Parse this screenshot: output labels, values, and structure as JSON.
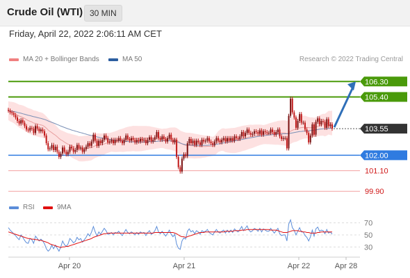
{
  "header": {
    "title": "Crude Oil (WTI)",
    "timeframe": "30 MIN"
  },
  "timestamp": "Friday, April 22, 2022 2:06:11 AM CET",
  "legend": {
    "ma20": {
      "label": "MA 20 + Bollinger Bands",
      "color": "#f08080"
    },
    "ma50": {
      "label": "MA 50",
      "color": "#2c5ea0"
    },
    "rsi": {
      "label": "RSI",
      "color": "#5b8dd9"
    },
    "nine_ma": {
      "label": "9MA",
      "color": "#e01010"
    }
  },
  "credit": "Research © 2022 Trading Central",
  "chart_data": [
    {
      "type": "candlestick",
      "x_labels": [
        "Apr 20",
        "Apr 21",
        "Apr 22",
        "Apr 28"
      ],
      "ylim": [
        99.3,
        107.0
      ],
      "levels": [
        {
          "label": "106.30",
          "value": 106.3,
          "kind": "resistance",
          "color": "#4a9a0a"
        },
        {
          "label": "105.40",
          "value": 105.4,
          "kind": "resistance",
          "color": "#4a9a0a"
        },
        {
          "label": "103.55",
          "value": 103.55,
          "kind": "last",
          "color": "#333333"
        },
        {
          "label": "102.00",
          "value": 102.0,
          "kind": "pivot",
          "color": "#2f7be0"
        },
        {
          "label": "101.10",
          "value": 101.1,
          "kind": "support",
          "color": "#f2a0a0"
        },
        {
          "label": "99.90",
          "value": 99.9,
          "kind": "support",
          "color": "#f2a0a0"
        }
      ],
      "close": [
        104.6,
        104.5,
        104.45,
        104.35,
        104.2,
        104.0,
        103.85,
        104.05,
        103.9,
        103.7,
        103.5,
        103.45,
        103.6,
        103.55,
        103.3,
        103.7,
        103.55,
        103.4,
        103.5,
        103.4,
        103.15,
        102.7,
        102.35,
        102.4,
        102.6,
        102.3,
        102.5,
        102.2,
        101.9,
        102.1,
        102.45,
        102.2,
        102.05,
        102.2,
        102.5,
        102.4,
        102.2,
        102.3,
        102.6,
        102.4,
        102.45,
        102.2,
        102.35,
        102.5,
        102.7,
        102.55,
        102.8,
        103.2,
        102.85,
        102.55,
        102.85,
        102.7,
        102.9,
        103.15,
        103.0,
        102.75,
        102.8,
        102.9,
        102.7,
        102.9,
        102.85,
        103.0,
        102.85,
        102.7,
        102.9,
        103.15,
        102.95,
        102.85,
        103.0,
        102.9,
        102.75,
        102.9,
        102.8,
        102.95,
        102.85,
        102.9,
        102.7,
        102.9,
        103.05,
        102.8,
        102.9,
        103.05,
        103.35,
        103.0,
        102.9,
        103.1,
        102.95,
        102.8,
        103.0,
        103.2,
        102.9,
        102.75,
        102.9,
        101.9,
        101.3,
        101.05,
        101.8,
        102.05,
        101.95,
        102.7,
        102.95,
        102.7,
        102.85,
        102.6,
        102.85,
        102.75,
        102.6,
        102.9,
        102.8,
        102.85,
        103.0,
        102.8,
        102.7,
        102.6,
        102.8,
        103.0,
        102.85,
        102.75,
        102.9,
        103.0,
        102.8,
        103.0,
        102.85,
        103.0,
        102.85,
        103.1,
        103.0,
        102.95,
        103.1,
        103.35,
        103.1,
        103.3,
        103.5,
        103.3,
        103.2,
        103.25,
        103.4,
        103.35,
        103.25,
        103.45,
        103.2,
        103.4,
        103.35,
        103.3,
        103.3,
        103.5,
        103.35,
        103.2,
        103.35,
        103.5,
        103.1,
        102.95,
        103.0,
        103.0,
        102.4,
        104.3,
        105.3,
        104.5,
        104.2,
        103.6,
        104.0,
        104.4,
        103.9,
        103.9,
        103.5,
        103.3,
        102.75,
        103.15,
        103.8,
        103.2,
        103.95,
        104.15,
        103.8,
        104.0,
        103.95,
        103.6,
        104.1,
        103.7,
        103.8,
        103.55
      ],
      "ma20": [
        104.6,
        104.55,
        104.52,
        104.48,
        104.42,
        104.35,
        104.28,
        104.25,
        104.2,
        104.15,
        104.08,
        104.02,
        103.98,
        103.94,
        103.88,
        103.86,
        103.83,
        103.79,
        103.77,
        103.74,
        103.67,
        103.58,
        103.47,
        103.39,
        103.32,
        103.24,
        103.17,
        103.08,
        102.98,
        102.9,
        102.84,
        102.77,
        102.7,
        102.64,
        102.6,
        102.55,
        102.51,
        102.47,
        102.43,
        102.38,
        102.38,
        102.38,
        102.39,
        102.4,
        102.41,
        102.42,
        102.44,
        102.5,
        102.55,
        102.58,
        102.6,
        102.6,
        102.63,
        102.66,
        102.7,
        102.72,
        102.74,
        102.77,
        102.78,
        102.79,
        102.81,
        102.84,
        102.86,
        102.87,
        102.89,
        102.92,
        102.94,
        102.95,
        102.96,
        102.98,
        102.97,
        102.97,
        102.97,
        102.97,
        102.98,
        102.99,
        103.0,
        103.0,
        103.01,
        103.0,
        103.0,
        103.0,
        103.0,
        102.99,
        102.99,
        102.98,
        102.98,
        102.96,
        102.96,
        102.97,
        102.96,
        102.95,
        102.94,
        102.89,
        102.81,
        102.72,
        102.66,
        102.62,
        102.58,
        102.57,
        102.57,
        102.56,
        102.55,
        102.53,
        102.53,
        102.52,
        102.51,
        102.51,
        102.51,
        102.51,
        102.52,
        102.52,
        102.52,
        102.52,
        102.56,
        102.67,
        102.8,
        102.86,
        102.91,
        102.91,
        102.86,
        102.86,
        102.86,
        102.86,
        102.86,
        102.86,
        102.88,
        102.91,
        102.93,
        102.97,
        102.99,
        103.01,
        103.04,
        103.07,
        103.09,
        103.1,
        103.13,
        103.15,
        103.17,
        103.19,
        103.2,
        103.2,
        103.22,
        103.23,
        103.25,
        103.26,
        103.27,
        103.28,
        103.29,
        103.31,
        103.31,
        103.31,
        103.31,
        103.3,
        103.26,
        103.31,
        103.4,
        103.46,
        103.5,
        103.51,
        103.54,
        103.59,
        103.61,
        103.63,
        103.64,
        103.62,
        103.61,
        103.6,
        103.63,
        103.62,
        103.65,
        103.69,
        103.73,
        103.76,
        103.78,
        103.76,
        103.82,
        103.9,
        103.88,
        103.88
      ],
      "ma50": [
        104.6,
        104.58,
        104.57,
        104.55,
        104.53,
        104.5,
        104.47,
        104.45,
        104.42,
        104.39,
        104.36,
        104.33,
        104.31,
        104.28,
        104.25,
        104.23,
        104.2,
        104.17,
        104.15,
        104.12,
        104.09,
        104.05,
        104.0,
        103.96,
        103.92,
        103.88,
        103.84,
        103.79,
        103.75,
        103.7,
        103.66,
        103.62,
        103.58,
        103.54,
        103.51,
        103.47,
        103.44,
        103.41,
        103.38,
        103.35,
        103.32,
        103.29,
        103.26,
        103.23,
        103.2,
        103.17,
        103.15,
        103.13,
        103.1,
        103.07,
        103.05,
        103.02,
        103.0,
        102.99,
        102.97,
        102.95,
        102.93,
        102.91,
        102.89,
        102.88,
        102.86,
        102.85,
        102.84,
        102.83,
        102.82,
        102.81,
        102.8,
        102.79,
        102.78,
        102.78,
        102.77,
        102.77,
        102.77,
        102.77,
        102.77,
        102.77,
        102.78,
        102.78,
        102.79,
        102.79,
        102.8,
        102.8,
        102.81,
        102.82,
        102.83,
        102.84,
        102.84,
        102.84,
        102.84,
        102.84,
        102.83,
        102.83,
        102.82,
        102.79,
        102.75,
        102.71,
        102.67,
        102.64,
        102.62,
        102.61,
        102.6,
        102.59,
        102.58,
        102.58,
        102.58,
        102.58,
        102.58,
        102.58,
        102.58,
        102.58,
        102.58,
        102.59,
        102.6,
        102.61,
        102.62,
        102.64,
        102.66,
        102.68,
        102.7,
        102.72,
        102.74,
        102.76,
        102.78,
        102.8,
        102.82,
        102.84,
        102.86,
        102.88,
        102.9,
        102.92,
        102.94,
        102.96,
        102.98,
        103.0,
        103.02,
        103.04,
        103.06,
        103.08,
        103.1,
        103.11,
        103.13,
        103.14,
        103.15,
        103.17,
        103.18,
        103.19,
        103.2,
        103.21,
        103.22,
        103.23,
        103.24,
        103.24,
        103.25,
        103.25,
        103.25,
        103.26,
        103.28,
        103.3,
        103.32,
        103.34,
        103.36,
        103.38,
        103.39,
        103.4,
        103.41,
        103.42,
        103.43,
        103.44,
        103.45,
        103.46,
        103.48,
        103.5,
        103.52,
        103.53,
        103.54,
        103.55,
        103.56,
        103.56,
        103.57,
        103.57
      ],
      "upper_band_offset": 0.55
    },
    {
      "type": "line",
      "name_hidden": true,
      "yticks": [
        30,
        50,
        70
      ],
      "ylim": [
        20,
        80
      ],
      "series": [
        {
          "key": "rsi",
          "values": [
            62,
            58,
            55,
            52,
            49,
            45,
            42,
            50,
            46,
            41,
            37,
            36,
            44,
            42,
            36,
            48,
            44,
            40,
            43,
            40,
            35,
            27,
            23,
            26,
            33,
            27,
            33,
            28,
            23,
            30,
            40,
            34,
            31,
            35,
            44,
            41,
            37,
            39,
            46,
            42,
            44,
            38,
            42,
            46,
            52,
            48,
            55,
            64,
            55,
            48,
            55,
            51,
            56,
            61,
            57,
            51,
            52,
            54,
            50,
            54,
            53,
            56,
            52,
            49,
            54,
            59,
            54,
            52,
            55,
            53,
            50,
            54,
            51,
            55,
            53,
            54,
            49,
            54,
            57,
            51,
            53,
            57,
            64,
            55,
            52,
            56,
            52,
            48,
            53,
            58,
            51,
            47,
            51,
            35,
            28,
            26,
            40,
            45,
            43,
            56,
            60,
            55,
            57,
            52,
            57,
            55,
            51,
            57,
            55,
            56,
            59,
            54,
            52,
            50,
            55,
            59,
            55,
            53,
            56,
            58,
            53,
            58,
            54,
            58,
            54,
            60,
            57,
            55,
            59,
            64,
            57,
            61,
            65,
            58,
            55,
            57,
            61,
            59,
            56,
            61,
            55,
            60,
            58,
            56,
            56,
            61,
            57,
            53,
            57,
            61,
            52,
            49,
            50,
            50,
            40,
            68,
            75,
            62,
            58,
            50,
            56,
            62,
            55,
            55,
            49,
            46,
            40,
            47,
            58,
            48,
            60,
            63,
            56,
            58,
            57,
            52,
            59,
            53,
            55,
            51
          ]
        },
        {
          "key": "nine_ma",
          "values": [
            55,
            54,
            53,
            52,
            51,
            50,
            49,
            48,
            47,
            46,
            45,
            44,
            44,
            43,
            43,
            42,
            42,
            41,
            41,
            40,
            39,
            38,
            37,
            35,
            34,
            33,
            32,
            31,
            30,
            29,
            30,
            30,
            31,
            31,
            32,
            33,
            34,
            35,
            36,
            37,
            38,
            39,
            40,
            41,
            42,
            43,
            44,
            46,
            47,
            48,
            49,
            50,
            51,
            52,
            52,
            53,
            53,
            53,
            53,
            53,
            53,
            53,
            53,
            53,
            53,
            53,
            53,
            53,
            53,
            53,
            53,
            53,
            53,
            53,
            53,
            53,
            53,
            53,
            53,
            53,
            53,
            54,
            54,
            54,
            54,
            54,
            54,
            54,
            54,
            54,
            54,
            54,
            53,
            52,
            50,
            48,
            47,
            47,
            46,
            47,
            48,
            49,
            50,
            51,
            52,
            53,
            54,
            54,
            54,
            55,
            55,
            55,
            55,
            55,
            55,
            55,
            55,
            55,
            55,
            55,
            56,
            56,
            56,
            56,
            56,
            57,
            57,
            57,
            57,
            58,
            58,
            58,
            59,
            59,
            59,
            59,
            59,
            59,
            59,
            59,
            59,
            59,
            59,
            59,
            59,
            58,
            58,
            58,
            58,
            57,
            56,
            55,
            54,
            54,
            54,
            55,
            56,
            57,
            57,
            57,
            57,
            56,
            56,
            55,
            55,
            54,
            54,
            53,
            53,
            53,
            53,
            54,
            54,
            55,
            55,
            55,
            55,
            55,
            55,
            55
          ]
        }
      ]
    }
  ]
}
